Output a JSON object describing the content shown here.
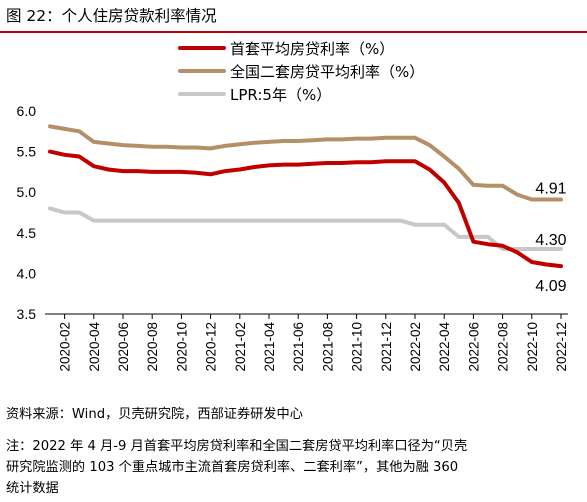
{
  "header": {
    "title": "图 22：个人住房贷款利率情况"
  },
  "footer": {
    "source": "资料来源：Wind，贝壳研究院，西部证券研发中心",
    "note_line1": "注：2022 年 4 月-9 月首套平均房贷利率和全国二套房贷平均利率口径为“贝壳",
    "note_line2": "研究院监测的 103 个重点城市主流首套房贷利率、二套利率”，其他为融 360",
    "note_line3": "统计数据"
  },
  "chart_data": {
    "type": "line",
    "title": "",
    "xlabel": "",
    "ylabel": "",
    "ylim": [
      3.5,
      6.0
    ],
    "yticks": [
      "3.5",
      "4.0",
      "4.5",
      "5.0",
      "5.5",
      "6.0"
    ],
    "xticks": [
      "2020-02",
      "2020-04",
      "2020-06",
      "2020-08",
      "2020-10",
      "2020-12",
      "2021-02",
      "2021-04",
      "2021-06",
      "2021-08",
      "2021-10",
      "2021-12",
      "2022-02",
      "2022-04",
      "2022-06",
      "2022-08",
      "2022-10",
      "2022-12"
    ],
    "x": [
      "2020-01",
      "2020-02",
      "2020-03",
      "2020-04",
      "2020-05",
      "2020-06",
      "2020-07",
      "2020-08",
      "2020-09",
      "2020-10",
      "2020-11",
      "2020-12",
      "2021-01",
      "2021-02",
      "2021-03",
      "2021-04",
      "2021-05",
      "2021-06",
      "2021-07",
      "2021-08",
      "2021-09",
      "2021-10",
      "2021-11",
      "2021-12",
      "2022-01",
      "2022-02",
      "2022-03",
      "2022-04",
      "2022-05",
      "2022-06",
      "2022-07",
      "2022-08",
      "2022-09",
      "2022-10",
      "2022-11",
      "2022-12"
    ],
    "grid": false,
    "legend_position": "top",
    "series": [
      {
        "name": "首套平均房贷利率（%）",
        "color": "#c00000",
        "values": [
          5.5,
          5.46,
          5.44,
          5.32,
          5.28,
          5.26,
          5.26,
          5.25,
          5.25,
          5.25,
          5.24,
          5.22,
          5.26,
          5.28,
          5.31,
          5.33,
          5.34,
          5.34,
          5.35,
          5.36,
          5.36,
          5.37,
          5.37,
          5.38,
          5.38,
          5.38,
          5.28,
          5.12,
          4.87,
          4.39,
          4.36,
          4.34,
          4.26,
          4.14,
          4.11,
          4.09
        ]
      },
      {
        "name": "全国二套房贷平均利率（%）",
        "color": "#b58f68",
        "values": [
          5.81,
          5.78,
          5.75,
          5.62,
          5.6,
          5.58,
          5.57,
          5.56,
          5.56,
          5.55,
          5.55,
          5.54,
          5.57,
          5.59,
          5.61,
          5.62,
          5.63,
          5.63,
          5.64,
          5.65,
          5.65,
          5.66,
          5.66,
          5.67,
          5.67,
          5.67,
          5.58,
          5.44,
          5.29,
          5.09,
          5.08,
          5.08,
          4.97,
          4.91,
          4.91,
          4.91
        ]
      },
      {
        "name": "LPR:5年（%）",
        "color": "#c8c8c8",
        "values": [
          4.8,
          4.75,
          4.75,
          4.65,
          4.65,
          4.65,
          4.65,
          4.65,
          4.65,
          4.65,
          4.65,
          4.65,
          4.65,
          4.65,
          4.65,
          4.65,
          4.65,
          4.65,
          4.65,
          4.65,
          4.65,
          4.65,
          4.65,
          4.65,
          4.65,
          4.6,
          4.6,
          4.6,
          4.45,
          4.45,
          4.45,
          4.3,
          4.3,
          4.3,
          4.3,
          4.3
        ]
      }
    ],
    "annotations": [
      {
        "text": "4.91",
        "series": 1,
        "x": "2022-12"
      },
      {
        "text": "4.30",
        "series": 2,
        "x": "2022-12"
      },
      {
        "text": "4.09",
        "series": 0,
        "x": "2022-12"
      }
    ]
  }
}
